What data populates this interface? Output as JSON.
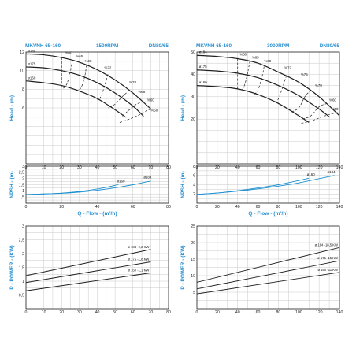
{
  "chart_data": [
    {
      "id": "c1",
      "type": "line",
      "panel": "head",
      "header": {
        "model": "MKVNH 65-160",
        "speed": "1500RPM",
        "size": "DN80/65"
      },
      "xlim": [
        0,
        80
      ],
      "ylim": [
        0,
        12
      ],
      "xticks": [
        0,
        10,
        20,
        30,
        40,
        50,
        60,
        70,
        80
      ],
      "yticks": [
        6,
        8,
        10,
        12
      ],
      "ylabel": "Head - (m)",
      "grid": true,
      "series": [
        {
          "name": "ø184",
          "x": [
            0,
            10,
            20,
            30,
            40,
            50,
            60,
            70
          ],
          "y": [
            11.8,
            11.7,
            11.4,
            10.9,
            10.1,
            9.0,
            7.6,
            5.9
          ]
        },
        {
          "name": "ø175",
          "x": [
            0,
            10,
            20,
            30,
            40,
            50,
            60,
            66
          ],
          "y": [
            10.4,
            10.3,
            10.0,
            9.5,
            8.7,
            7.6,
            6.2,
            5.1
          ]
        },
        {
          "name": "ø160",
          "x": [
            0,
            10,
            20,
            30,
            40,
            50,
            56
          ],
          "y": [
            8.9,
            8.7,
            8.4,
            7.8,
            7.0,
            5.8,
            5.0
          ]
        }
      ],
      "dashed_sets": [
        {
          "x": [
            20,
            20,
            20,
            20
          ],
          "y": [
            11.4,
            10.5,
            9.0,
            8.3
          ]
        },
        {
          "x": [
            26,
            25,
            23,
            21
          ],
          "y": [
            11.1,
            10.0,
            8.6,
            8.1
          ]
        },
        {
          "x": [
            34,
            33,
            31,
            29
          ],
          "y": [
            10.6,
            9.4,
            8.2,
            7.9
          ]
        },
        {
          "x": [
            46,
            44,
            42,
            40
          ],
          "y": [
            9.6,
            8.3,
            7.2,
            6.9
          ]
        },
        {
          "x": [
            58,
            54,
            50,
            46
          ],
          "y": [
            7.9,
            7.2,
            6.4,
            6.0
          ]
        },
        {
          "x": [
            66,
            62,
            58,
            54
          ],
          "y": [
            6.7,
            6.4,
            5.8,
            5.1
          ]
        },
        {
          "x": [
            70,
            64,
            58,
            52
          ],
          "y": [
            5.9,
            5.3,
            4.8,
            4.4
          ]
        }
      ],
      "annotations": [
        {
          "text": "ø184",
          "x": 1,
          "y": 12.0
        },
        {
          "text": "ø175",
          "x": 1,
          "y": 10.6
        },
        {
          "text": "ø160",
          "x": 1,
          "y": 9.1
        },
        {
          "text": "%60",
          "x": 22,
          "y": 11.8
        },
        {
          "text": "%65",
          "x": 28,
          "y": 11.4
        },
        {
          "text": "%68",
          "x": 33,
          "y": 10.9
        },
        {
          "text": "%72",
          "x": 44,
          "y": 10.2
        },
        {
          "text": "%70",
          "x": 58,
          "y": 8.6
        },
        {
          "text": "%68",
          "x": 63,
          "y": 7.6
        },
        {
          "text": "%60",
          "x": 68,
          "y": 6.7
        },
        {
          "text": "%50",
          "x": 70,
          "y": 5.6
        }
      ]
    },
    {
      "id": "c2",
      "type": "line",
      "panel": "npsh",
      "xlim": [
        0,
        80
      ],
      "ylim": [
        0,
        3
      ],
      "xticks": [
        0,
        10,
        20,
        30,
        40,
        50,
        60,
        70,
        80
      ],
      "xticklabels": [
        "0",
        "",
        "20",
        "",
        "40",
        "",
        "60",
        "",
        "80"
      ],
      "yticks": [
        0.5,
        1,
        1.5,
        2,
        2.5,
        3
      ],
      "yticklabels": [
        ",5",
        "1",
        "1,5",
        "2",
        "2,5",
        "3"
      ],
      "ylabel": "NPSH - (m)",
      "xlabel": "Q - Flow - (m³/h)",
      "grid": true,
      "series": [
        {
          "name": "ø184",
          "x": [
            0,
            10,
            20,
            30,
            40,
            50,
            60,
            70
          ],
          "y": [
            0.7,
            0.75,
            0.8,
            0.9,
            1.05,
            1.25,
            1.5,
            1.8
          ]
        },
        {
          "name": "ø160",
          "x": [
            0,
            10,
            20,
            30,
            40,
            50,
            52
          ],
          "y": [
            0.7,
            0.75,
            0.82,
            0.95,
            1.15,
            1.45,
            1.55
          ]
        }
      ],
      "annotations": [
        {
          "text": "ø160",
          "x": 51,
          "y": 1.7
        },
        {
          "text": "ø184",
          "x": 66,
          "y": 2.0
        }
      ]
    },
    {
      "id": "c3",
      "type": "line",
      "panel": "power",
      "xlim": [
        0,
        80
      ],
      "ylim": [
        0,
        3
      ],
      "xticks": [
        0,
        10,
        20,
        30,
        40,
        50,
        60,
        70,
        80
      ],
      "yticks": [
        0.5,
        1,
        1.5,
        2,
        2.5,
        3
      ],
      "yticklabels": [
        "0,5",
        "1",
        "1,5",
        "2",
        "2,5",
        "3"
      ],
      "ylabel": "P - POWER - (KW)",
      "grid": true,
      "series": [
        {
          "name": "ø 184 -2,2 KW",
          "x": [
            0,
            70
          ],
          "y": [
            1.2,
            2.15
          ]
        },
        {
          "name": "ø 175 -1,8 KW",
          "x": [
            0,
            70
          ],
          "y": [
            0.95,
            1.7
          ]
        },
        {
          "name": "ø 160 -1,1 KW",
          "x": [
            0,
            70
          ],
          "y": [
            0.65,
            1.3
          ]
        }
      ]
    },
    {
      "id": "c4",
      "type": "line",
      "panel": "head",
      "header": {
        "model": "MKVNH 65-160",
        "speed": "3000RPM",
        "size": "DN80/65"
      },
      "xlim": [
        0,
        140
      ],
      "ylim": [
        0,
        50
      ],
      "xticks": [
        0,
        20,
        40,
        60,
        80,
        100,
        120,
        140
      ],
      "yticks": [
        20,
        30,
        40,
        50
      ],
      "ylabel": "Head - (m)",
      "grid": true,
      "series": [
        {
          "name": "ø184",
          "x": [
            0,
            20,
            40,
            60,
            80,
            100,
            120,
            140
          ],
          "y": [
            48.5,
            48.0,
            47.0,
            45.0,
            41.0,
            36.5,
            30.0,
            21.5
          ]
        },
        {
          "name": "ø175",
          "x": [
            0,
            20,
            40,
            60,
            80,
            100,
            120,
            130
          ],
          "y": [
            42.0,
            41.5,
            40.5,
            38.5,
            35.0,
            30.5,
            24.5,
            21.0
          ]
        },
        {
          "name": "ø160",
          "x": [
            0,
            20,
            40,
            60,
            80,
            100,
            110
          ],
          "y": [
            35.0,
            34.5,
            33.5,
            31.0,
            27.0,
            21.5,
            18.5
          ]
        }
      ],
      "dashed_sets": [
        {
          "x": [
            40,
            40,
            40,
            40
          ],
          "y": [
            47.0,
            42.0,
            36.0,
            33.0
          ]
        },
        {
          "x": [
            52,
            50,
            47,
            44
          ],
          "y": [
            46.0,
            41.0,
            35.5,
            32.5
          ]
        },
        {
          "x": [
            66,
            64,
            60,
            56
          ],
          "y": [
            43.5,
            39.0,
            33.0,
            31.0
          ]
        },
        {
          "x": [
            88,
            84,
            80,
            76
          ],
          "y": [
            39.5,
            34.0,
            29.0,
            27.5
          ]
        },
        {
          "x": [
            112,
            106,
            100,
            92
          ],
          "y": [
            33.0,
            30.0,
            25.0,
            23.0
          ]
        },
        {
          "x": [
            128,
            120,
            112,
            104
          ],
          "y": [
            27.0,
            25.5,
            21.5,
            20.0
          ]
        },
        {
          "x": [
            138,
            126,
            114,
            102
          ],
          "y": [
            23.0,
            21.5,
            19.5,
            18.0
          ]
        }
      ],
      "annotations": [
        {
          "text": "ø184",
          "x": 2,
          "y": 49.5
        },
        {
          "text": "ø175",
          "x": 2,
          "y": 43.0
        },
        {
          "text": "ø160",
          "x": 2,
          "y": 36.0
        },
        {
          "text": "%60",
          "x": 42,
          "y": 48.5
        },
        {
          "text": "%65",
          "x": 54,
          "y": 47.0
        },
        {
          "text": "%68",
          "x": 66,
          "y": 45.5
        },
        {
          "text": "%72",
          "x": 86,
          "y": 42.5
        },
        {
          "text": "%75",
          "x": 102,
          "y": 39.5
        },
        {
          "text": "%70",
          "x": 116,
          "y": 34.5
        },
        {
          "text": "%60",
          "x": 130,
          "y": 28.0
        },
        {
          "text": "%50",
          "x": 132,
          "y": 24.0
        }
      ]
    },
    {
      "id": "c5",
      "type": "line",
      "panel": "npsh",
      "xlim": [
        0,
        140
      ],
      "ylim": [
        0,
        8
      ],
      "xticks": [
        0,
        20,
        40,
        60,
        80,
        100,
        120,
        140
      ],
      "yticks": [
        2,
        4,
        6,
        8
      ],
      "ylabel": "NPSH - (m)",
      "xlabel": "Q - Flow - (m³/h)",
      "grid": true,
      "series": [
        {
          "name": "ø184",
          "x": [
            0,
            20,
            40,
            60,
            80,
            100,
            120,
            135
          ],
          "y": [
            1.9,
            2.2,
            2.6,
            3.1,
            3.7,
            4.4,
            5.3,
            6.0
          ]
        },
        {
          "name": "ø160",
          "x": [
            0,
            20,
            40,
            60,
            80,
            100,
            110
          ],
          "y": [
            1.9,
            2.2,
            2.7,
            3.3,
            4.0,
            4.9,
            5.4
          ]
        }
      ],
      "annotations": [
        {
          "text": "ø160",
          "x": 108,
          "y": 6.0
        },
        {
          "text": "ø184",
          "x": 128,
          "y": 6.5
        }
      ]
    },
    {
      "id": "c6",
      "type": "line",
      "panel": "power",
      "xlim": [
        0,
        140
      ],
      "ylim": [
        0,
        25
      ],
      "xticks": [
        0,
        20,
        40,
        60,
        80,
        100,
        120,
        140
      ],
      "yticks": [
        5,
        10,
        15,
        20,
        25
      ],
      "ylabel": "P - POWER - (KW)",
      "grid": true,
      "series": [
        {
          "name": "ø 184 -18,5 KW",
          "x": [
            0,
            140
          ],
          "y": [
            8.0,
            18.5
          ]
        },
        {
          "name": "ø 175 -15 KW",
          "x": [
            0,
            140
          ],
          "y": [
            6.0,
            14.5
          ]
        },
        {
          "name": "ø 160 -11 KW",
          "x": [
            0,
            140
          ],
          "y": [
            4.5,
            11.0
          ]
        }
      ]
    }
  ],
  "colors": {
    "blue_text": "#2a8fd0",
    "head_curve": "#1f1f1f",
    "dashed_curve": "#1f1f1f",
    "npsh_curve": "#1a8fd0",
    "power_curve": "#1f1f1f",
    "grid": "#c9c9c9",
    "axis": "#222222"
  }
}
